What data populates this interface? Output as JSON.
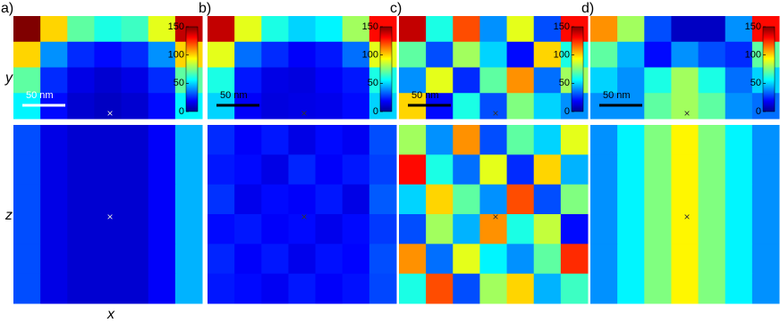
{
  "chart_data": {
    "type": "heatmap",
    "x_label": "x",
    "y_label": "y",
    "z_label": "z",
    "scale_bar": "50 nm",
    "marker": "×",
    "clim": [
      0,
      150
    ],
    "cticks": [
      0,
      50,
      100,
      150
    ],
    "panels": [
      {
        "label": "a)",
        "top": [
          [
            150,
            100,
            70,
            60,
            65,
            90,
            140
          ],
          [
            100,
            40,
            25,
            20,
            25,
            40,
            100
          ],
          [
            70,
            25,
            15,
            12,
            15,
            25,
            70
          ],
          [
            55,
            20,
            12,
            10,
            12,
            20,
            55
          ]
        ],
        "bottom": [
          [
            30,
            15,
            12,
            12,
            12,
            18,
            45
          ],
          [
            30,
            15,
            12,
            12,
            12,
            18,
            45
          ],
          [
            30,
            15,
            12,
            12,
            12,
            18,
            45
          ],
          [
            30,
            15,
            12,
            12,
            12,
            18,
            45
          ],
          [
            30,
            15,
            12,
            12,
            12,
            18,
            45
          ],
          [
            30,
            15,
            12,
            12,
            12,
            18,
            45
          ]
        ]
      },
      {
        "label": "b)",
        "top": [
          [
            140,
            90,
            60,
            50,
            55,
            80,
            130
          ],
          [
            90,
            35,
            25,
            18,
            22,
            35,
            90
          ],
          [
            60,
            22,
            15,
            14,
            18,
            22,
            60
          ],
          [
            50,
            18,
            14,
            15,
            16,
            20,
            50
          ]
        ],
        "bottom": [
          [
            25,
            18,
            22,
            15,
            20,
            17,
            30
          ],
          [
            22,
            20,
            15,
            24,
            18,
            22,
            28
          ],
          [
            26,
            16,
            20,
            18,
            22,
            15,
            32
          ],
          [
            20,
            22,
            18,
            20,
            16,
            20,
            27
          ],
          [
            24,
            18,
            22,
            16,
            21,
            19,
            30
          ],
          [
            22,
            20,
            17,
            22,
            18,
            21,
            29
          ]
        ]
      },
      {
        "label": "c)",
        "top": [
          [
            140,
            60,
            120,
            40,
            90,
            30,
            130
          ],
          [
            70,
            30,
            80,
            50,
            20,
            100,
            60
          ],
          [
            40,
            90,
            25,
            70,
            110,
            35,
            80
          ],
          [
            100,
            20,
            60,
            30,
            75,
            50,
            40
          ]
        ],
        "bottom": [
          [
            80,
            40,
            110,
            30,
            70,
            50,
            90
          ],
          [
            130,
            60,
            35,
            90,
            25,
            100,
            45
          ],
          [
            50,
            100,
            70,
            40,
            120,
            30,
            75
          ],
          [
            30,
            80,
            45,
            110,
            60,
            85,
            20
          ],
          [
            110,
            35,
            90,
            55,
            40,
            70,
            125
          ],
          [
            60,
            120,
            30,
            80,
            100,
            45,
            65
          ]
        ]
      },
      {
        "label": "d)",
        "top": [
          [
            110,
            80,
            30,
            10,
            10,
            40,
            130
          ],
          [
            70,
            45,
            20,
            40,
            30,
            25,
            70
          ],
          [
            50,
            40,
            60,
            80,
            60,
            35,
            50
          ],
          [
            40,
            40,
            70,
            80,
            70,
            40,
            35
          ]
        ],
        "bottom": [
          [
            40,
            55,
            75,
            95,
            75,
            55,
            40
          ],
          [
            40,
            55,
            75,
            95,
            75,
            55,
            40
          ],
          [
            40,
            55,
            75,
            95,
            75,
            55,
            40
          ],
          [
            40,
            55,
            75,
            95,
            75,
            55,
            40
          ],
          [
            40,
            55,
            75,
            95,
            75,
            55,
            40
          ],
          [
            40,
            55,
            75,
            95,
            75,
            55,
            40
          ]
        ]
      }
    ]
  }
}
